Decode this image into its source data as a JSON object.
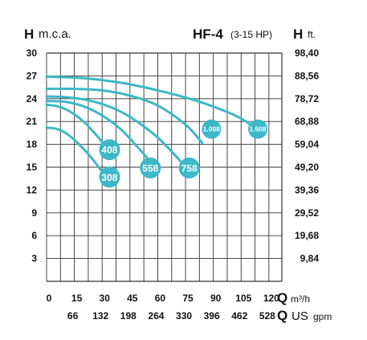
{
  "chart_data": {
    "type": "line",
    "title": "HF-4",
    "subtitle": "(3-15 HP)",
    "ylabel_left": {
      "symbol": "H",
      "unit": "m.c.a."
    },
    "ylabel_right": {
      "symbol": "H",
      "unit": "ft."
    },
    "xlabel_top": {
      "symbol": "Q",
      "unit": "m³/h"
    },
    "xlabel_bottom": {
      "symbol": "Q",
      "unit": "US",
      "unit2": "gpm"
    },
    "xlim": [
      0,
      127
    ],
    "ylim": [
      0,
      30
    ],
    "x_ticks_m3h": [
      "0",
      "15",
      "30",
      "45",
      "60",
      "75",
      "90",
      "105",
      "120"
    ],
    "x_ticks_gpm": [
      "66",
      "132",
      "198",
      "264",
      "330",
      "396",
      "462",
      "528"
    ],
    "y_ticks_left": [
      "30",
      "27",
      "24",
      "21",
      "18",
      "15",
      "12",
      "9",
      "6",
      "3"
    ],
    "y_ticks_right": [
      "98,40",
      "88,56",
      "78,72",
      "68,88",
      "59,04",
      "49,20",
      "39,36",
      "29,52",
      "19,68",
      "9,84"
    ],
    "grid": true,
    "line_color": "#3cb8c8",
    "series": [
      {
        "name": "308",
        "x": [
          0,
          6,
          12,
          18,
          24,
          30
        ],
        "y": [
          20.2,
          20.0,
          19.2,
          17.9,
          16.3,
          14.4
        ],
        "label_at": [
          34,
          13.7
        ]
      },
      {
        "name": "408",
        "x": [
          0,
          6,
          12,
          18,
          24,
          30,
          36
        ],
        "y": [
          23.2,
          23.0,
          22.4,
          21.4,
          20.0,
          18.3,
          16.2
        ],
        "label_at": [
          34,
          17.3
        ]
      },
      {
        "name": "558",
        "x": [
          0,
          10,
          20,
          30,
          40,
          50,
          55
        ],
        "y": [
          23.7,
          23.6,
          23.0,
          21.8,
          20.0,
          17.4,
          16.0
        ],
        "label_at": [
          56,
          14.9
        ]
      },
      {
        "name": "758",
        "x": [
          0,
          10,
          20,
          30,
          40,
          50,
          60,
          70,
          72
        ],
        "y": [
          24.3,
          24.2,
          23.9,
          23.3,
          22.3,
          20.8,
          18.9,
          16.4,
          15.8
        ],
        "label_at": [
          77,
          14.9
        ]
      },
      {
        "name": "1.008",
        "x": [
          0,
          15,
          30,
          45,
          60,
          75,
          84
        ],
        "y": [
          25.3,
          25.3,
          25.1,
          24.4,
          23.1,
          20.6,
          18.2
        ],
        "label_at": [
          89,
          20.0
        ]
      },
      {
        "name": "1.508",
        "x": [
          0,
          20,
          40,
          60,
          80,
          95,
          105,
          111
        ],
        "y": [
          26.9,
          26.7,
          26.1,
          25.1,
          23.8,
          22.5,
          21.4,
          20.4
        ],
        "label_at": [
          114,
          20.0
        ]
      }
    ]
  }
}
